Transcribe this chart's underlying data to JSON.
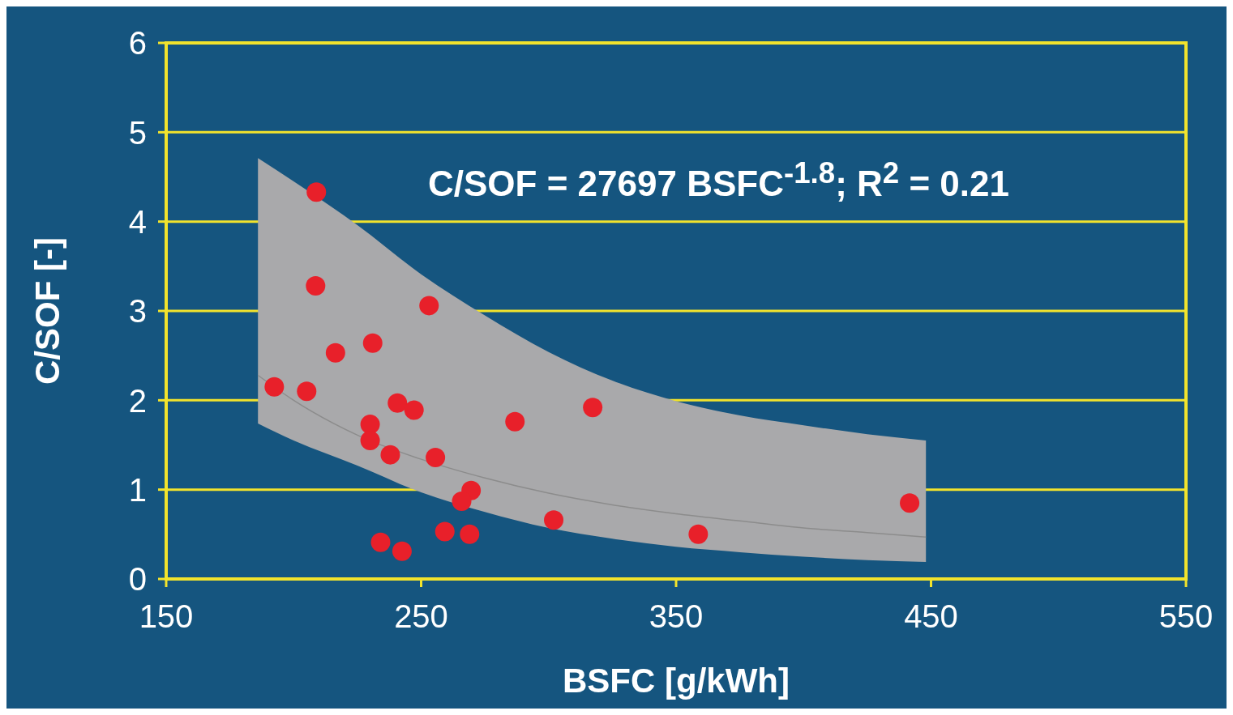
{
  "chart_data": {
    "type": "scatter",
    "xlabel": "BSFC [g/kWh]",
    "ylabel": "C/SOF [-]",
    "annotations": [
      "C/SOF = 27697 BSFC$^{-1.8}$; R$^{2}$ = 0.21"
    ],
    "xlim": [
      150,
      550
    ],
    "xticks": [
      150,
      250,
      350,
      450,
      550
    ],
    "ylim": [
      0,
      6
    ],
    "yticks": [
      0,
      1,
      2,
      3,
      4,
      5,
      6
    ],
    "grid": "y",
    "series": [
      {
        "type": "line",
        "color": "#8c8c8c",
        "line_style": "solid",
        "x": [
          186,
          200,
          225,
          250,
          275,
          300,
          325,
          350,
          375,
          400,
          425,
          448
        ],
        "values": [
          2.28,
          2.0,
          1.61,
          1.34,
          1.13,
          0.96,
          0.83,
          0.73,
          0.65,
          0.57,
          0.52,
          0.47
        ],
        "lower": [
          1.74,
          1.55,
          1.27,
          0.97,
          0.75,
          0.57,
          0.45,
          0.36,
          0.3,
          0.25,
          0.21,
          0.19
        ],
        "upper": [
          4.71,
          4.45,
          3.96,
          3.41,
          2.95,
          2.54,
          2.22,
          1.99,
          1.83,
          1.72,
          1.62,
          1.55
        ]
      },
      {
        "marker": "circle",
        "color": "#e8202a",
        "x": [
          192.4,
          208.9,
          208.6,
          205.1,
          216.4,
          231,
          230,
          230,
          237.9,
          240.7,
          247.2,
          253.1,
          255.6,
          269.6,
          265.9,
          259.3,
          269,
          234.1,
          242.5,
          286.8,
          317.3,
          302,
          358.7,
          441.6
        ],
        "values": [
          2.15,
          4.33,
          3.28,
          2.1,
          2.53,
          2.64,
          1.73,
          1.55,
          1.39,
          1.97,
          1.89,
          3.06,
          1.36,
          0.99,
          0.87,
          0.53,
          0.5,
          0.41,
          0.31,
          1.76,
          1.92,
          0.66,
          0.5,
          0.85
        ]
      }
    ]
  }
}
